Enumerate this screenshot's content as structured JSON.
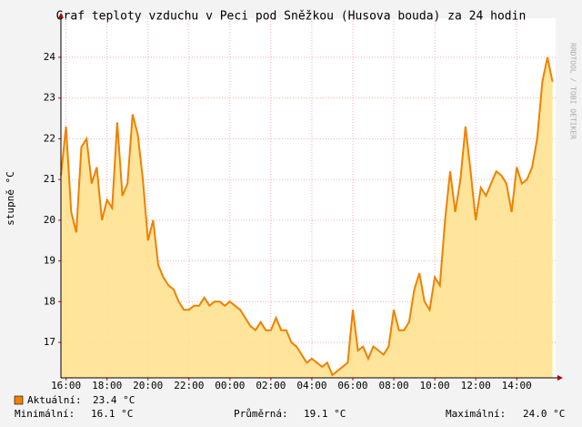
{
  "chart_data": {
    "type": "area",
    "title": "Graf teploty vzduchu v Peci pod Sněžkou (Husova bouda) za 24 hodin",
    "y_label": "stupně °C",
    "watermark": "RRDTOOL / TOBI OETIKER",
    "x": [
      15.75,
      16,
      16.25,
      16.5,
      16.75,
      17,
      17.25,
      17.5,
      17.75,
      18,
      18.25,
      18.5,
      18.75,
      19,
      19.25,
      19.5,
      19.75,
      20,
      20.25,
      20.5,
      20.75,
      21,
      21.25,
      21.5,
      21.75,
      22,
      22.25,
      22.5,
      22.75,
      23,
      23.25,
      23.5,
      23.75,
      24,
      24.25,
      24.5,
      24.75,
      25,
      25.25,
      25.5,
      25.75,
      26,
      26.25,
      26.5,
      26.75,
      27,
      27.25,
      27.5,
      27.75,
      28,
      28.25,
      28.5,
      28.75,
      29,
      29.25,
      29.5,
      29.75,
      30,
      30.25,
      30.5,
      30.75,
      31,
      31.25,
      31.5,
      31.75,
      32,
      32.25,
      32.5,
      32.75,
      33,
      33.25,
      33.5,
      33.75,
      34,
      34.25,
      34.5,
      34.75,
      35,
      35.25,
      35.5,
      35.75,
      36,
      36.25,
      36.5,
      36.75,
      37,
      37.25,
      37.5,
      37.75,
      38,
      38.25,
      38.5,
      38.75,
      39,
      39.25,
      39.5,
      39.75
    ],
    "series": [
      {
        "name": "Aktuální:",
        "color": "#f08000",
        "fill": "#ffe08a",
        "values": [
          21.1,
          22.3,
          20.2,
          19.7,
          21.8,
          22.0,
          20.9,
          21.3,
          20.0,
          20.5,
          20.3,
          22.4,
          20.6,
          20.9,
          22.6,
          22.1,
          21.0,
          19.5,
          20.0,
          18.9,
          18.6,
          18.4,
          18.3,
          18.0,
          17.8,
          17.8,
          17.9,
          17.9,
          18.1,
          17.9,
          18.0,
          18.0,
          17.9,
          18.0,
          17.9,
          17.8,
          17.6,
          17.4,
          17.3,
          17.5,
          17.3,
          17.3,
          17.6,
          17.3,
          17.3,
          17.0,
          16.9,
          16.7,
          16.5,
          16.6,
          16.5,
          16.4,
          16.5,
          16.2,
          16.3,
          16.4,
          16.5,
          17.8,
          16.8,
          16.9,
          16.6,
          16.9,
          16.8,
          16.7,
          16.9,
          17.8,
          17.3,
          17.3,
          17.5,
          18.3,
          18.7,
          18.0,
          17.8,
          18.6,
          18.4,
          20.0,
          21.2,
          20.2,
          21.0,
          22.3,
          21.2,
          20.0,
          20.8,
          20.6,
          20.9,
          21.2,
          21.1,
          20.9,
          20.2,
          21.3,
          20.9,
          21.0,
          21.3,
          22.0,
          23.4,
          24.0,
          23.4
        ]
      }
    ],
    "xlim": [
      15.75,
      39.9
    ],
    "xticks": [
      {
        "value": 16,
        "label": "16:00"
      },
      {
        "value": 18,
        "label": "18:00"
      },
      {
        "value": 20,
        "label": "20:00"
      },
      {
        "value": 22,
        "label": "22:00"
      },
      {
        "value": 24,
        "label": "00:00"
      },
      {
        "value": 26,
        "label": "02:00"
      },
      {
        "value": 28,
        "label": "04:00"
      },
      {
        "value": 30,
        "label": "06:00"
      },
      {
        "value": 32,
        "label": "08:00"
      },
      {
        "value": 34,
        "label": "10:00"
      },
      {
        "value": 36,
        "label": "12:00"
      },
      {
        "value": 38,
        "label": "14:00"
      }
    ],
    "ylim": [
      16.13,
      24.96
    ],
    "yticks": [
      17,
      18,
      19,
      20,
      21,
      22,
      23,
      24
    ],
    "grid": true,
    "current": "23.4 °C",
    "stats": [
      {
        "label": "Minimální:",
        "value": "16.1 °C"
      },
      {
        "label": "Průměrná:",
        "value": "19.1 °C"
      },
      {
        "label": "Maximální:",
        "value": "24.0 °C"
      }
    ]
  }
}
